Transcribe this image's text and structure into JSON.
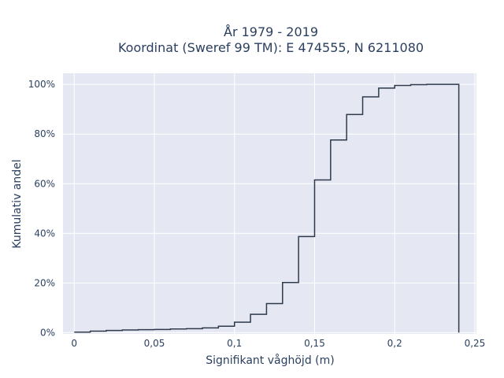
{
  "chart_data": {
    "type": "line",
    "step": true,
    "title_line1": "År 1979 - 2019",
    "title_line2": "Koordinat (Sweref 99 TM): E 474555, N 6211080",
    "xlabel": "Signifikant våghöjd (m)",
    "ylabel": "Kumulativ andel",
    "xlim": [
      -0.007,
      0.251
    ],
    "ylim": [
      -0.005,
      1.045
    ],
    "x_ticks": [
      {
        "value": 0,
        "label": "0"
      },
      {
        "value": 0.05,
        "label": "0,05"
      },
      {
        "value": 0.1,
        "label": "0,1"
      },
      {
        "value": 0.15,
        "label": "0,15"
      },
      {
        "value": 0.2,
        "label": "0,2"
      },
      {
        "value": 0.25,
        "label": "0,25"
      }
    ],
    "y_ticks": [
      {
        "value": 0,
        "label": "0%"
      },
      {
        "value": 0.2,
        "label": "20%"
      },
      {
        "value": 0.4,
        "label": "40%"
      },
      {
        "value": 0.6,
        "label": "60%"
      },
      {
        "value": 0.8,
        "label": "80%"
      },
      {
        "value": 1.0,
        "label": "100%"
      }
    ],
    "grid": true,
    "line_color": "#2e3a4c",
    "plot_bg": "#e5e8f2",
    "x": [
      0,
      0.01,
      0.02,
      0.03,
      0.04,
      0.05,
      0.06,
      0.07,
      0.08,
      0.09,
      0.1,
      0.11,
      0.12,
      0.13,
      0.14,
      0.15,
      0.16,
      0.17,
      0.18,
      0.19,
      0.2,
      0.21,
      0.22,
      0.23,
      0.24
    ],
    "y": [
      0.002,
      0.006,
      0.009,
      0.011,
      0.012,
      0.013,
      0.015,
      0.016,
      0.019,
      0.026,
      0.042,
      0.074,
      0.117,
      0.202,
      0.387,
      0.615,
      0.776,
      0.879,
      0.95,
      0.985,
      0.996,
      0.999,
      1.0,
      1.0,
      0.0
    ]
  }
}
